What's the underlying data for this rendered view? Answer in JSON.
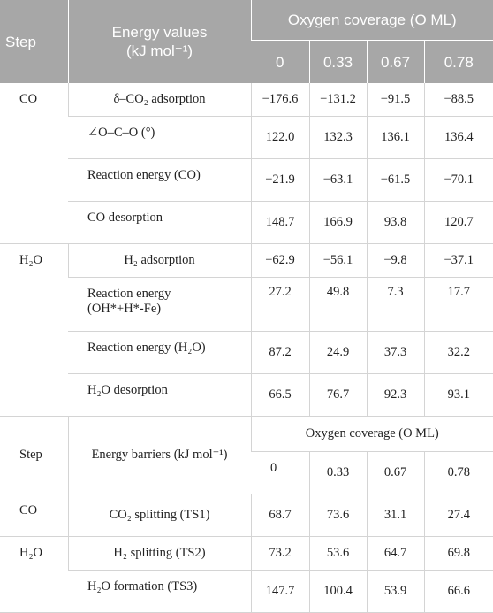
{
  "header": {
    "step": "Step",
    "energy_values_line1": "Energy values",
    "energy_values_line2": "(kJ mol⁻¹)",
    "oxygen_coverage": "Oxygen coverage (O ML)",
    "coverages": [
      "0",
      "0.33",
      "0.67",
      "0.78"
    ]
  },
  "groups": [
    {
      "step": "CO",
      "rows": [
        {
          "label": "δ–CO₂ adsorption",
          "values": [
            "−176.6",
            "−131.2",
            "−91.5",
            "−88.5"
          ]
        },
        {
          "label": "∠O–C–O (°)",
          "values": [
            "122.0",
            "132.3",
            "136.1",
            "136.4"
          ]
        },
        {
          "label": "Reaction energy (CO)",
          "values": [
            "−21.9",
            "−63.1",
            "−61.5",
            "−70.1"
          ]
        },
        {
          "label": "CO desorption",
          "values": [
            "148.7",
            "166.9",
            "93.8",
            "120.7"
          ]
        }
      ]
    },
    {
      "step": "H₂O",
      "rows": [
        {
          "label": "H₂ adsorption",
          "values": [
            "−62.9",
            "−56.1",
            "−9.8",
            "−37.1"
          ]
        },
        {
          "label_line1": "Reaction energy",
          "label_line2": "(OH*+H*-Fe)",
          "values": [
            "27.2",
            "49.8",
            "7.3",
            "17.7"
          ]
        },
        {
          "label": "Reaction energy (H₂O)",
          "values": [
            "87.2",
            "24.9",
            "37.3",
            "32.2"
          ]
        },
        {
          "label": "H₂O desorption",
          "values": [
            "66.5",
            "76.7",
            "92.3",
            "93.1"
          ]
        }
      ]
    }
  ],
  "barriers_header": {
    "step": "Step",
    "energy_barriers": "Energy barriers (kJ mol⁻¹)",
    "oxygen_coverage": "Oxygen coverage (O ML)",
    "coverages": [
      "0",
      "0.33",
      "0.67",
      "0.78"
    ]
  },
  "barrier_groups": [
    {
      "step": "CO",
      "rows": [
        {
          "label": "CO₂ splitting (TS1)",
          "values": [
            "68.7",
            "73.6",
            "31.1",
            "27.4"
          ]
        }
      ]
    },
    {
      "step": "H₂O",
      "rows": [
        {
          "label": "H₂ splitting (TS2)",
          "values": [
            "73.2",
            "53.6",
            "64.7",
            "69.8"
          ]
        },
        {
          "label": "H₂O formation (TS3)",
          "values": [
            "147.7",
            "100.4",
            "53.9",
            "66.6"
          ]
        }
      ]
    }
  ]
}
